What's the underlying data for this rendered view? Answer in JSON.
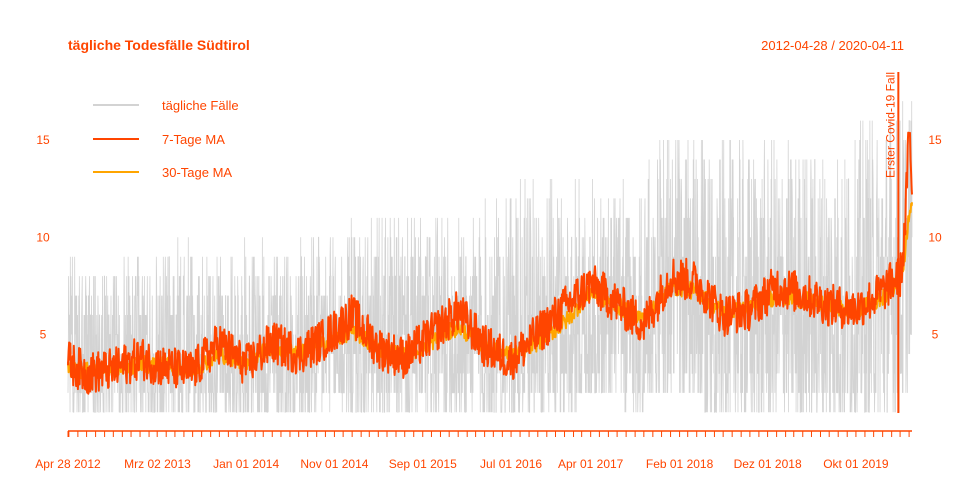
{
  "chart_data": {
    "type": "line",
    "title": "tägliche Todesfälle Südtirol",
    "date_range": "2012-04-28 / 2020-04-11",
    "x_start": "2012-04-28",
    "x_end": "2020-04-11",
    "ylim": [
      0.5,
      18.5
    ],
    "y_ticks": [
      5,
      10,
      15
    ],
    "y_tick_labels": [
      "5",
      "10",
      "15"
    ],
    "x_ticks": [
      "2012-04-28",
      "2013-03-02",
      "2014-01-01",
      "2014-11-01",
      "2015-09-01",
      "2016-07-01",
      "2017-04-01",
      "2018-02-01",
      "2018-12-01",
      "2019-10-01"
    ],
    "x_tick_labels": [
      "Apr 28 2012",
      "Mrz 02 2013",
      "Jan 01 2014",
      "Nov 01 2014",
      "Sep 01 2015",
      "Jul 01 2016",
      "Apr 01 2017",
      "Feb 01 2018",
      "Dez 01 2018",
      "Okt 01 2019"
    ],
    "grid": false,
    "legend_position": "top-left",
    "series": [
      {
        "name": "tägliche Fälle",
        "color": "#D3D3D3",
        "style": "daily values (estimated ranges)",
        "x": [
          "2012-04-28",
          "2012-09-01",
          "2013-01-01",
          "2013-05-01",
          "2013-09-01",
          "2014-01-01",
          "2014-05-01",
          "2014-09-01",
          "2015-01-01",
          "2015-05-01",
          "2015-09-01",
          "2016-01-01",
          "2016-05-01",
          "2016-09-01",
          "2017-01-01",
          "2017-05-01",
          "2017-09-01",
          "2018-01-01",
          "2018-05-01",
          "2018-09-01",
          "2019-01-01",
          "2019-05-01",
          "2019-09-01",
          "2020-01-01",
          "2020-03-01",
          "2020-03-25",
          "2020-04-11"
        ],
        "min": [
          1,
          1,
          1,
          1,
          1,
          1,
          1,
          1,
          1,
          1,
          1,
          1,
          1,
          1,
          1,
          2,
          1,
          2,
          1,
          1,
          1,
          1,
          1,
          1,
          1,
          2,
          5
        ],
        "max": [
          9,
          8,
          9,
          10,
          9,
          10,
          10,
          10,
          11,
          11,
          11,
          11,
          12,
          13,
          13,
          13,
          13,
          16,
          15,
          15,
          15,
          15,
          15,
          17,
          17,
          18,
          17
        ]
      },
      {
        "name": "7-Tage MA",
        "color": "#FF4500",
        "x": [
          "2012-04-28",
          "2012-07-01",
          "2012-10-01",
          "2013-01-01",
          "2013-04-01",
          "2013-07-01",
          "2013-10-01",
          "2014-01-01",
          "2014-04-01",
          "2014-07-01",
          "2014-10-01",
          "2015-01-01",
          "2015-04-01",
          "2015-07-01",
          "2015-10-01",
          "2016-01-01",
          "2016-04-01",
          "2016-07-01",
          "2016-10-01",
          "2017-01-01",
          "2017-04-01",
          "2017-07-01",
          "2017-10-01",
          "2018-01-01",
          "2018-04-01",
          "2018-07-01",
          "2018-10-01",
          "2019-01-01",
          "2019-04-01",
          "2019-07-01",
          "2019-10-01",
          "2020-01-01",
          "2020-02-15",
          "2020-03-01",
          "2020-03-10",
          "2020-03-20",
          "2020-03-28",
          "2020-04-04",
          "2020-04-11"
        ],
        "y": [
          3.6,
          3.0,
          3.2,
          3.8,
          3.3,
          3.1,
          4.6,
          3.4,
          4.6,
          4.0,
          4.8,
          6.0,
          4.3,
          3.8,
          5.0,
          6.2,
          4.4,
          3.7,
          5.0,
          6.4,
          7.6,
          6.6,
          5.5,
          8.0,
          7.7,
          6.0,
          6.3,
          7.5,
          7.1,
          6.5,
          6.3,
          7.2,
          7.9,
          8.0,
          8.8,
          11.0,
          14.5,
          15.0,
          12.2
        ]
      },
      {
        "name": "30-Tage MA",
        "color": "#FFA500",
        "x": [
          "2012-04-28",
          "2012-07-01",
          "2012-10-01",
          "2013-01-01",
          "2013-04-01",
          "2013-07-01",
          "2013-10-01",
          "2014-01-01",
          "2014-04-01",
          "2014-07-01",
          "2014-10-01",
          "2015-01-01",
          "2015-04-01",
          "2015-07-01",
          "2015-10-01",
          "2016-01-01",
          "2016-04-01",
          "2016-07-01",
          "2016-10-01",
          "2017-01-01",
          "2017-04-01",
          "2017-07-01",
          "2017-10-01",
          "2018-01-01",
          "2018-04-01",
          "2018-07-01",
          "2018-10-01",
          "2019-01-01",
          "2019-04-01",
          "2019-07-01",
          "2019-10-01",
          "2020-01-01",
          "2020-02-15",
          "2020-03-01",
          "2020-03-10",
          "2020-03-20",
          "2020-03-28",
          "2020-04-04",
          "2020-04-11"
        ],
        "y": [
          3.3,
          3.1,
          3.2,
          3.5,
          3.4,
          3.2,
          4.0,
          3.6,
          4.4,
          4.1,
          4.5,
          5.2,
          4.3,
          3.9,
          4.6,
          5.4,
          4.4,
          3.9,
          4.6,
          5.6,
          7.2,
          6.5,
          5.8,
          7.5,
          7.2,
          6.1,
          6.3,
          7.0,
          6.8,
          6.4,
          6.2,
          6.9,
          7.6,
          7.9,
          8.4,
          9.5,
          10.8,
          11.6,
          11.8
        ]
      }
    ],
    "annotation": {
      "text": "Erster Covid-19 Fall",
      "x": "2020-02-24",
      "color": "#FF4500"
    }
  }
}
